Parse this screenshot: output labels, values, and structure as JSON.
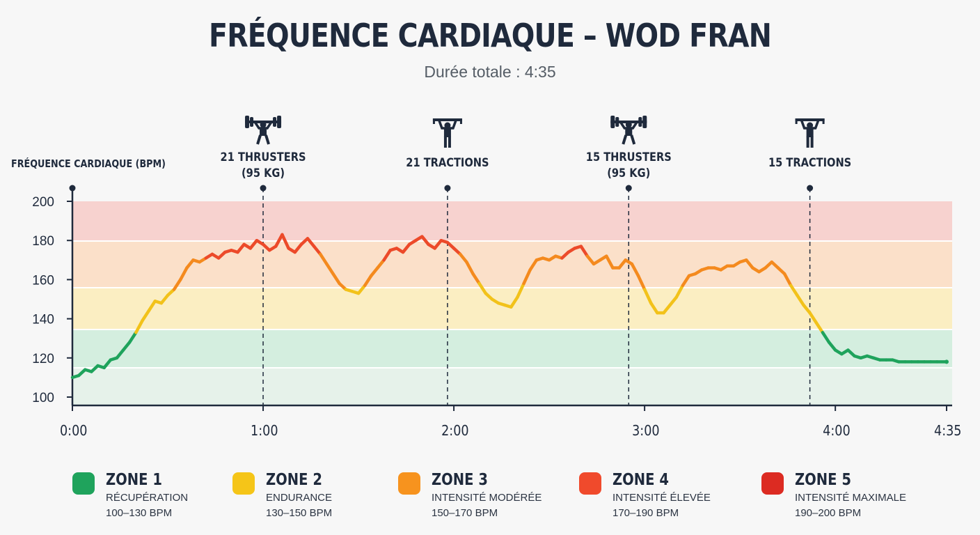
{
  "title": "FRÉQUENCE CARDIAQUE – WOD FRAN",
  "subtitle": "Durée totale : 4:35",
  "chart_data": {
    "type": "line",
    "ylabel": "FRÉQUENCE CARDIAQUE (BPM)",
    "xlabel": "",
    "ylim": [
      100,
      200
    ],
    "xlim": [
      0,
      275
    ],
    "y_ticks": [
      "100",
      "120",
      "140",
      "160",
      "180",
      "200"
    ],
    "x_ticks": [
      {
        "t": 0,
        "label": "0:00"
      },
      {
        "t": 60,
        "label": "1:00"
      },
      {
        "t": 120,
        "label": "2:00"
      },
      {
        "t": 180,
        "label": "3:00"
      },
      {
        "t": 240,
        "label": "4:00"
      },
      {
        "t": 275,
        "label": "4:35"
      }
    ],
    "grid": false,
    "zones": [
      {
        "name": "ZONE 1",
        "desc": "RÉCUPÉRATION",
        "range": "100–130 BPM",
        "lo": 100,
        "hi": 130,
        "color": "#1fa35c"
      },
      {
        "name": "ZONE 2",
        "desc": "ENDURANCE",
        "range": "130–150 BPM",
        "lo": 130,
        "hi": 150,
        "color": "#f5c518"
      },
      {
        "name": "ZONE 3",
        "desc": "INTENSITÉ MODÉRÉE",
        "range": "150–170 BPM",
        "lo": 150,
        "hi": 170,
        "color": "#f7931e"
      },
      {
        "name": "ZONE 4",
        "desc": "INTENSITÉ ÉLEVÉE",
        "range": "170–190 BPM",
        "lo": 170,
        "hi": 190,
        "color": "#f04a2c"
      },
      {
        "name": "ZONE 5",
        "desc": "INTENSITÉ MAXIMALE",
        "range": "190–200 BPM",
        "lo": 190,
        "hi": 200,
        "color": "#dc2b22"
      }
    ],
    "events": [
      {
        "t": 60,
        "lines": [
          "21 THRUSTERS",
          "(95 KG)"
        ],
        "icon": "barbell-icon"
      },
      {
        "t": 118,
        "lines": [
          "21 TRACTIONS"
        ],
        "icon": "pullup-icon"
      },
      {
        "t": 175,
        "lines": [
          "15 THRUSTERS",
          "(95 KG)"
        ],
        "icon": "barbell-icon"
      },
      {
        "t": 232,
        "lines": [
          "15 TRACTIONS"
        ],
        "icon": "pullup-icon"
      }
    ],
    "series": [
      {
        "x": [
          0,
          2,
          4,
          6,
          8,
          10,
          12,
          14,
          16,
          18,
          20,
          22,
          24,
          26,
          28,
          30,
          32,
          34,
          36,
          38,
          40,
          42,
          44,
          46,
          48,
          50,
          52,
          54,
          56,
          58,
          60,
          62,
          64,
          66,
          68,
          70,
          72,
          74,
          76,
          78,
          80,
          82,
          84,
          86,
          88,
          90,
          92,
          94,
          96,
          98,
          100,
          102,
          104,
          106,
          108,
          110,
          112,
          114,
          116,
          118,
          120,
          122,
          124,
          126,
          128,
          130,
          132,
          134,
          136,
          138,
          140,
          142,
          144,
          146,
          148,
          150,
          152,
          154,
          156,
          158,
          160,
          162,
          164,
          166,
          168,
          170,
          172,
          174,
          176,
          178,
          180,
          182,
          184,
          186,
          188,
          190,
          192,
          194,
          196,
          198,
          200,
          202,
          204,
          206,
          208,
          210,
          212,
          214,
          216,
          218,
          220,
          222,
          224,
          226,
          228,
          230,
          232,
          234,
          236,
          238,
          240,
          242,
          244,
          246,
          248,
          250,
          252,
          254,
          256,
          258,
          260,
          262,
          264,
          266,
          268,
          270,
          272,
          275
        ],
        "values": [
          110,
          111,
          114,
          113,
          116,
          115,
          119,
          120,
          124,
          128,
          133,
          139,
          144,
          149,
          148,
          152,
          155,
          160,
          166,
          170,
          169,
          171,
          173,
          171,
          174,
          175,
          174,
          178,
          176,
          180,
          178,
          175,
          177,
          183,
          176,
          174,
          178,
          181,
          177,
          173,
          168,
          163,
          158,
          155,
          154,
          153,
          157,
          162,
          166,
          170,
          175,
          176,
          174,
          178,
          180,
          182,
          178,
          176,
          180,
          179,
          176,
          173,
          169,
          163,
          158,
          153,
          150,
          148,
          147,
          146,
          151,
          158,
          165,
          170,
          171,
          170,
          172,
          171,
          174,
          176,
          177,
          172,
          168,
          170,
          172,
          166,
          166,
          170,
          168,
          162,
          155,
          148,
          143,
          143,
          147,
          151,
          157,
          162,
          163,
          165,
          166,
          166,
          165,
          167,
          167,
          169,
          170,
          166,
          164,
          166,
          169,
          166,
          163,
          157,
          152,
          147,
          143,
          138,
          133,
          128,
          124,
          122,
          124,
          121,
          120,
          121,
          120,
          119,
          119,
          119,
          118,
          118,
          118,
          118,
          118,
          118,
          118,
          118
        ]
      }
    ]
  },
  "icons": {
    "dot": "marker-dot"
  }
}
